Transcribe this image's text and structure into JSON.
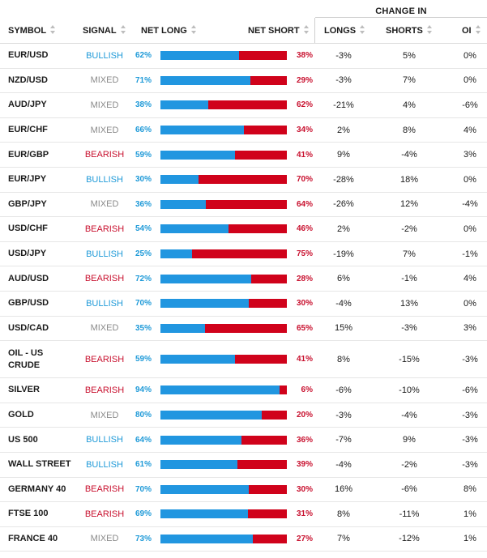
{
  "header": {
    "change_in": "CHANGE IN",
    "symbol": "SYMBOL",
    "signal": "SIGNAL",
    "net_long": "NET LONG",
    "net_short": "NET SHORT",
    "longs": "LONGS",
    "shorts": "SHORTS",
    "oi": "OI"
  },
  "colors": {
    "long_blue": "#2196e0",
    "short_red": "#d0021b",
    "bullish": "#1f9ad8",
    "bearish": "#c8102e",
    "mixed": "#8a8a8a"
  },
  "rows": [
    {
      "symbol": "EUR/USD",
      "signal": "BULLISH",
      "net_long": "62%",
      "net_short": "38%",
      "long_fraction": 0.62,
      "longs": "-3%",
      "shorts": "5%",
      "oi": "0%"
    },
    {
      "symbol": "NZD/USD",
      "signal": "MIXED",
      "net_long": "71%",
      "net_short": "29%",
      "long_fraction": 0.71,
      "longs": "-3%",
      "shorts": "7%",
      "oi": "0%"
    },
    {
      "symbol": "AUD/JPY",
      "signal": "MIXED",
      "net_long": "38%",
      "net_short": "62%",
      "long_fraction": 0.38,
      "longs": "-21%",
      "shorts": "4%",
      "oi": "-6%"
    },
    {
      "symbol": "EUR/CHF",
      "signal": "MIXED",
      "net_long": "66%",
      "net_short": "34%",
      "long_fraction": 0.66,
      "longs": "2%",
      "shorts": "8%",
      "oi": "4%"
    },
    {
      "symbol": "EUR/GBP",
      "signal": "BEARISH",
      "net_long": "59%",
      "net_short": "41%",
      "long_fraction": 0.59,
      "longs": "9%",
      "shorts": "-4%",
      "oi": "3%"
    },
    {
      "symbol": "EUR/JPY",
      "signal": "BULLISH",
      "net_long": "30%",
      "net_short": "70%",
      "long_fraction": 0.3,
      "longs": "-28%",
      "shorts": "18%",
      "oi": "0%"
    },
    {
      "symbol": "GBP/JPY",
      "signal": "MIXED",
      "net_long": "36%",
      "net_short": "64%",
      "long_fraction": 0.36,
      "longs": "-26%",
      "shorts": "12%",
      "oi": "-4%"
    },
    {
      "symbol": "USD/CHF",
      "signal": "BEARISH",
      "net_long": "54%",
      "net_short": "46%",
      "long_fraction": 0.54,
      "longs": "2%",
      "shorts": "-2%",
      "oi": "0%"
    },
    {
      "symbol": "USD/JPY",
      "signal": "BULLISH",
      "net_long": "25%",
      "net_short": "75%",
      "long_fraction": 0.25,
      "longs": "-19%",
      "shorts": "7%",
      "oi": "-1%"
    },
    {
      "symbol": "AUD/USD",
      "signal": "BEARISH",
      "net_long": "72%",
      "net_short": "28%",
      "long_fraction": 0.72,
      "longs": "6%",
      "shorts": "-1%",
      "oi": "4%"
    },
    {
      "symbol": "GBP/USD",
      "signal": "BULLISH",
      "net_long": "70%",
      "net_short": "30%",
      "long_fraction": 0.7,
      "longs": "-4%",
      "shorts": "13%",
      "oi": "0%"
    },
    {
      "symbol": "USD/CAD",
      "signal": "MIXED",
      "net_long": "35%",
      "net_short": "65%",
      "long_fraction": 0.35,
      "longs": "15%",
      "shorts": "-3%",
      "oi": "3%"
    },
    {
      "symbol": "OIL - US CRUDE",
      "signal": "BEARISH",
      "net_long": "59%",
      "net_short": "41%",
      "long_fraction": 0.59,
      "longs": "8%",
      "shorts": "-15%",
      "oi": "-3%"
    },
    {
      "symbol": "SILVER",
      "signal": "BEARISH",
      "net_long": "94%",
      "net_short": "6%",
      "long_fraction": 0.94,
      "longs": "-6%",
      "shorts": "-10%",
      "oi": "-6%"
    },
    {
      "symbol": "GOLD",
      "signal": "MIXED",
      "net_long": "80%",
      "net_short": "20%",
      "long_fraction": 0.8,
      "longs": "-3%",
      "shorts": "-4%",
      "oi": "-3%"
    },
    {
      "symbol": "US 500",
      "signal": "BULLISH",
      "net_long": "64%",
      "net_short": "36%",
      "long_fraction": 0.64,
      "longs": "-7%",
      "shorts": "9%",
      "oi": "-3%"
    },
    {
      "symbol": "WALL STREET",
      "signal": "BULLISH",
      "net_long": "61%",
      "net_short": "39%",
      "long_fraction": 0.61,
      "longs": "-4%",
      "shorts": "-2%",
      "oi": "-3%"
    },
    {
      "symbol": "GERMANY 40",
      "signal": "BEARISH",
      "net_long": "70%",
      "net_short": "30%",
      "long_fraction": 0.7,
      "longs": "16%",
      "shorts": "-6%",
      "oi": "8%"
    },
    {
      "symbol": "FTSE 100",
      "signal": "BEARISH",
      "net_long": "69%",
      "net_short": "31%",
      "long_fraction": 0.69,
      "longs": "8%",
      "shorts": "-11%",
      "oi": "1%"
    },
    {
      "symbol": "FRANCE 40",
      "signal": "MIXED",
      "net_long": "73%",
      "net_short": "27%",
      "long_fraction": 0.73,
      "longs": "7%",
      "shorts": "-12%",
      "oi": "1%"
    }
  ]
}
